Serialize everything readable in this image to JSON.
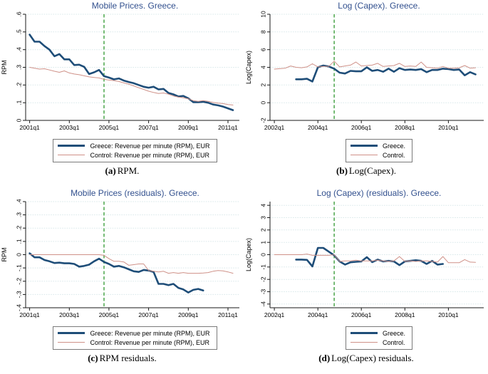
{
  "page": {
    "background": "#ffffff"
  },
  "colors": {
    "greece_line": "#1e4d78",
    "control_line": "#cf9188",
    "vline_green": "#4aa54a",
    "title_blue": "#32508e",
    "grid": "#d9e8ea",
    "axis": "#1a1a1a",
    "legend_border": "#7a7a7a",
    "text": "#000000"
  },
  "chart_data": [
    {
      "type": "line",
      "panel": "a",
      "title": "Mobile Prices. Greece.",
      "caption_label": "(a)",
      "caption_text": "RPM.",
      "ylabel": "RPM",
      "ylim": [
        0,
        0.6
      ],
      "ytick_vals": [
        0,
        0.1,
        0.2,
        0.3,
        0.4,
        0.5,
        0.6
      ],
      "ytick_labels": [
        "0",
        ".1",
        ".2",
        ".3",
        ".4",
        ".5",
        ".6"
      ],
      "x_start": "2001q1",
      "x_domain": [
        -0.8,
        42.3
      ],
      "xtick_vals": [
        0,
        8,
        16,
        24,
        32,
        40
      ],
      "xtick_labels": [
        "2001q1",
        "2003q1",
        "2005q1",
        "2007q1",
        "2009q1",
        "2011q1"
      ],
      "vline_x": 15,
      "grid": true,
      "legend_position": "below",
      "series": [
        {
          "name": "Greece: Revenue per minute (RPM), EUR",
          "color": "greece_line",
          "width": 2.6,
          "x0": 0,
          "values": [
            0.485,
            0.445,
            0.445,
            0.42,
            0.4,
            0.363,
            0.375,
            0.345,
            0.345,
            0.313,
            0.315,
            0.303,
            0.262,
            0.272,
            0.285,
            0.25,
            0.242,
            0.232,
            0.237,
            0.225,
            0.217,
            0.21,
            0.2,
            0.19,
            0.185,
            0.19,
            0.175,
            0.178,
            0.155,
            0.147,
            0.135,
            0.138,
            0.125,
            0.103,
            0.103,
            0.105,
            0.1,
            0.09,
            0.085,
            0.078,
            0.068,
            0.058
          ]
        },
        {
          "name": "Control: Revenue per minute (RPM), EUR",
          "color": "control_line",
          "width": 1,
          "x0": 0,
          "values": [
            0.3,
            0.295,
            0.29,
            0.292,
            0.285,
            0.278,
            0.272,
            0.28,
            0.268,
            0.262,
            0.258,
            0.252,
            0.246,
            0.243,
            0.24,
            0.232,
            0.228,
            0.225,
            0.22,
            0.212,
            0.205,
            0.195,
            0.185,
            0.175,
            0.165,
            0.158,
            0.152,
            0.155,
            0.148,
            0.138,
            0.132,
            0.128,
            0.122,
            0.112,
            0.108,
            0.112,
            0.108,
            0.102,
            0.098,
            0.095,
            0.09,
            0.087
          ]
        }
      ]
    },
    {
      "type": "line",
      "panel": "b",
      "title": "Log (Capex). Greece.",
      "caption_label": "(b)",
      "caption_text": "Log(Capex).",
      "ylabel": "Log(Capex)",
      "ylim": [
        -2,
        10
      ],
      "ytick_vals": [
        -2,
        0,
        2,
        4,
        6,
        8,
        10
      ],
      "ytick_labels": [
        "-2",
        "0",
        "2",
        "4",
        "6",
        "8",
        "10"
      ],
      "x_start": "2002q1",
      "x_domain": [
        -0.8,
        38.5
      ],
      "xtick_vals": [
        0,
        8,
        16,
        24,
        32
      ],
      "xtick_labels": [
        "2002q1",
        "2004q1",
        "2006q1",
        "2008q1",
        "2010q1"
      ],
      "vline_x": 11,
      "grid": true,
      "legend_position": "below",
      "series": [
        {
          "name": "Greece.",
          "color": "greece_line",
          "width": 2.6,
          "x0": 4,
          "values": [
            2.65,
            2.65,
            2.7,
            2.4,
            4.0,
            4.2,
            4.1,
            3.85,
            3.4,
            3.3,
            3.6,
            3.55,
            3.55,
            4.0,
            3.6,
            3.7,
            3.5,
            3.85,
            3.5,
            3.9,
            3.7,
            3.75,
            3.7,
            3.8,
            3.45,
            3.7,
            3.7,
            3.85,
            3.8,
            3.7,
            3.75,
            3.1,
            3.45,
            3.2
          ]
        },
        {
          "name": "Control.",
          "color": "control_line",
          "width": 1,
          "x0": 0,
          "values": [
            3.8,
            3.85,
            3.9,
            4.15,
            4.0,
            3.95,
            4.05,
            4.4,
            4.05,
            4.1,
            4.1,
            4.7,
            4.05,
            4.15,
            4.25,
            4.6,
            4.15,
            4.2,
            4.25,
            4.45,
            4.1,
            4.15,
            4.2,
            4.45,
            4.1,
            4.15,
            4.1,
            4.6,
            4.0,
            3.95,
            3.9,
            4.1,
            3.9,
            3.9,
            3.95,
            4.2,
            3.9,
            3.95
          ]
        }
      ]
    },
    {
      "type": "line",
      "panel": "c",
      "title": "Mobile Prices (residuals). Greece.",
      "caption_label": "(c)",
      "caption_text": "RPM residuals.",
      "ylabel": "RPM",
      "ylim": [
        -0.4,
        0.4
      ],
      "ytick_vals": [
        -0.4,
        -0.3,
        -0.2,
        -0.1,
        0,
        0.1,
        0.2,
        0.3,
        0.4
      ],
      "ytick_labels": [
        "-.4",
        "-.3",
        "-.2",
        "-.1",
        "0",
        ".1",
        ".2",
        ".3",
        ".4"
      ],
      "x_start": "2001q1",
      "x_domain": [
        -0.8,
        42.3
      ],
      "xtick_vals": [
        0,
        8,
        16,
        24,
        32,
        40
      ],
      "xtick_labels": [
        "2001q1",
        "2003q1",
        "2005q1",
        "2007q1",
        "2009q1",
        "2011q1"
      ],
      "vline_x": 15,
      "grid": true,
      "legend_position": "below",
      "series": [
        {
          "name": "Greece: Revenue per minute (RPM), EUR",
          "color": "greece_line",
          "width": 2.6,
          "x0": 0,
          "values": [
            0.01,
            -0.02,
            -0.02,
            -0.04,
            -0.05,
            -0.063,
            -0.06,
            -0.065,
            -0.065,
            -0.07,
            -0.09,
            -0.085,
            -0.075,
            -0.05,
            -0.03,
            -0.055,
            -0.07,
            -0.09,
            -0.085,
            -0.095,
            -0.11,
            -0.125,
            -0.13,
            -0.115,
            -0.12,
            -0.13,
            -0.22,
            -0.22,
            -0.23,
            -0.22,
            -0.25,
            -0.262,
            -0.285,
            -0.265,
            -0.258,
            -0.27
          ]
        },
        {
          "name": "Control: Revenue per minute (RPM), EUR",
          "color": "control_line",
          "width": 1,
          "x0": 0,
          "values": [
            0,
            0,
            0,
            0,
            0,
            0,
            0,
            0,
            0,
            0,
            0,
            0,
            0,
            0,
            0,
            -0.005,
            -0.03,
            -0.05,
            -0.05,
            -0.055,
            -0.08,
            -0.075,
            -0.07,
            -0.07,
            -0.12,
            -0.125,
            -0.13,
            -0.125,
            -0.14,
            -0.135,
            -0.14,
            -0.135,
            -0.14,
            -0.14,
            -0.14,
            -0.138,
            -0.135,
            -0.125,
            -0.12,
            -0.122,
            -0.13,
            -0.14
          ]
        }
      ]
    },
    {
      "type": "line",
      "panel": "d",
      "title": "Log (Capex) (residuals). Greece.",
      "caption_label": "(d)",
      "caption_text": "Log(Capex) residuals.",
      "ylabel": "Log(Capex)",
      "ylim": [
        -4.3,
        4.3
      ],
      "ytick_vals": [
        -4,
        -3,
        -2,
        -1,
        0,
        1,
        2,
        3,
        4
      ],
      "ytick_labels": [
        "-4",
        "-3",
        "-2",
        "-1",
        "0",
        "1",
        "2",
        "3",
        "4"
      ],
      "x_start": "2002q1",
      "x_domain": [
        -0.8,
        38.5
      ],
      "xtick_vals": [
        0,
        8,
        16,
        24,
        32
      ],
      "xtick_labels": [
        "2002q1",
        "2004q1",
        "2006q1",
        "2008q1",
        "2010q1"
      ],
      "vline_x": 11,
      "grid": true,
      "legend_position": "below",
      "series": [
        {
          "name": "Greece.",
          "color": "greece_line",
          "width": 2.6,
          "x0": 4,
          "values": [
            -0.4,
            -0.4,
            -0.42,
            -0.95,
            0.55,
            0.55,
            0.25,
            -0.05,
            -0.55,
            -0.8,
            -0.62,
            -0.58,
            -0.55,
            -0.2,
            -0.6,
            -0.4,
            -0.55,
            -0.5,
            -0.55,
            -0.85,
            -0.55,
            -0.5,
            -0.45,
            -0.5,
            -0.75,
            -0.5,
            -0.8,
            -0.75
          ]
        },
        {
          "name": "Control.",
          "color": "control_line",
          "width": 1,
          "x0": 0,
          "values": [
            0,
            0,
            0,
            0,
            0,
            0,
            0.05,
            -0.05,
            -0.05,
            -0.05,
            -0.05,
            0.0,
            -0.55,
            -0.5,
            -0.5,
            -0.45,
            -0.5,
            -0.5,
            -0.5,
            -0.45,
            -0.5,
            -0.55,
            -0.5,
            -0.15,
            -0.55,
            -0.5,
            -0.55,
            -0.5,
            -0.5,
            -0.55,
            -0.6,
            -0.15,
            -0.65,
            -0.65,
            -0.65,
            -0.4,
            -0.6,
            -0.62
          ]
        }
      ]
    }
  ]
}
